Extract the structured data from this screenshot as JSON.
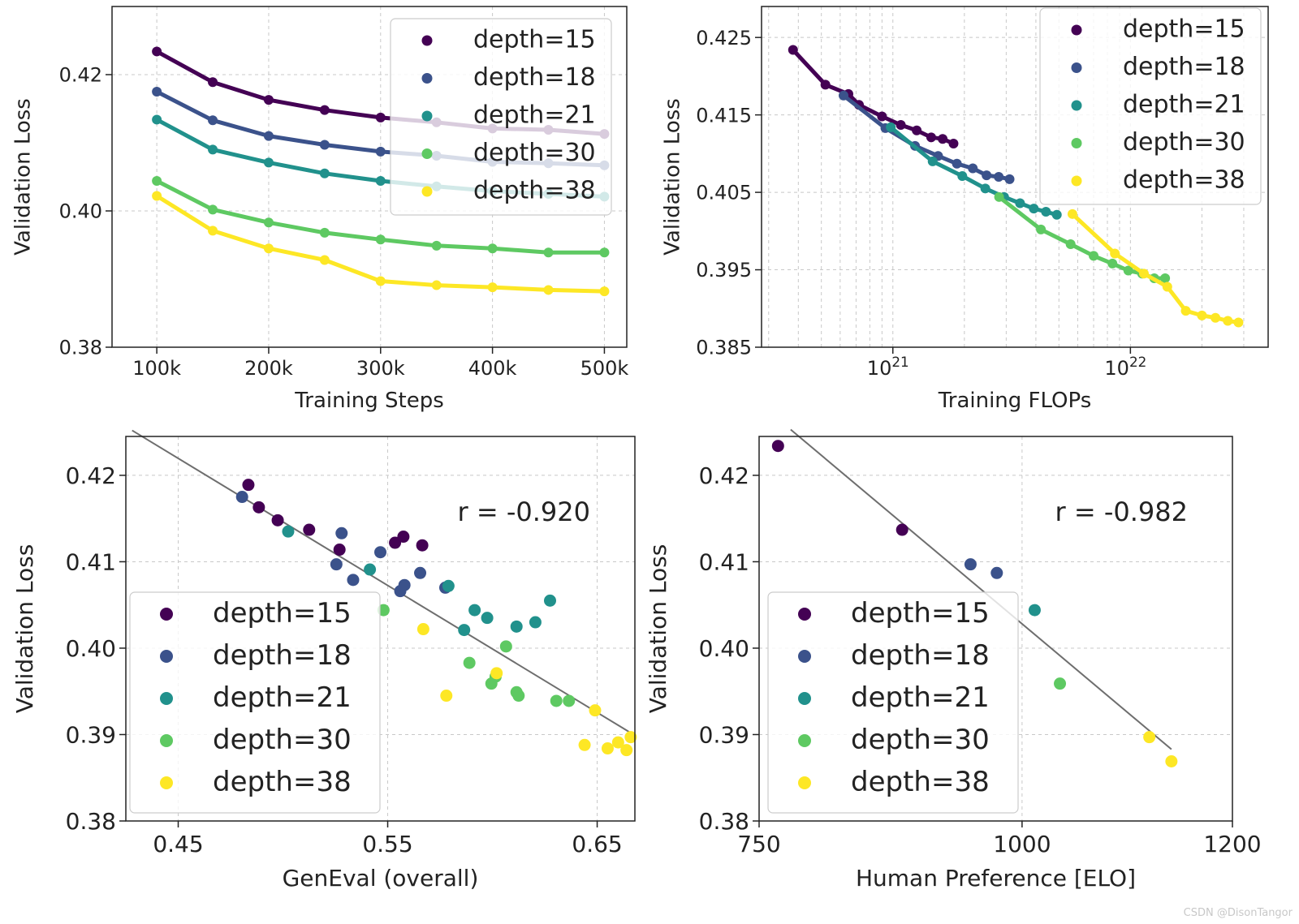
{
  "watermark": "CSDN @DisonTangor",
  "series_colors": {
    "depth=15": "#440154",
    "depth=18": "#3b528b",
    "depth=21": "#21918c",
    "depth=30": "#5ec962",
    "depth=38": "#fde725"
  },
  "chart_data": [
    {
      "id": "steps",
      "type": "line",
      "xlabel": "Training Steps",
      "ylabel": "Validation Loss",
      "xlim": [
        60000,
        520000
      ],
      "ylim": [
        0.38,
        0.43
      ],
      "xticks": [
        100000,
        200000,
        300000,
        400000,
        500000
      ],
      "xtick_labels": [
        "100k",
        "200k",
        "300k",
        "400k",
        "500k"
      ],
      "yticks": [
        0.38,
        0.4,
        0.42
      ],
      "ytick_labels": [
        "0.38",
        "0.40",
        "0.42"
      ],
      "grid": true,
      "legend": "top-right",
      "x": [
        100000,
        150000,
        200000,
        250000,
        300000,
        350000,
        400000,
        450000,
        500000
      ],
      "series": [
        {
          "name": "depth=15",
          "values": [
            0.4234,
            0.4189,
            0.4163,
            0.4148,
            0.4137,
            0.413,
            0.4121,
            0.4119,
            0.4113
          ]
        },
        {
          "name": "depth=18",
          "values": [
            0.4175,
            0.4133,
            0.411,
            0.4097,
            0.4087,
            0.4081,
            0.4072,
            0.407,
            0.4067
          ]
        },
        {
          "name": "depth=21",
          "values": [
            0.4134,
            0.409,
            0.4071,
            0.4055,
            0.4044,
            0.4036,
            0.4029,
            0.4025,
            0.4021
          ]
        },
        {
          "name": "depth=30",
          "values": [
            0.4044,
            0.4002,
            0.3983,
            0.3968,
            0.3958,
            0.3949,
            0.3945,
            0.3939,
            0.3939
          ]
        },
        {
          "name": "depth=38",
          "values": [
            0.4022,
            0.3971,
            0.3945,
            0.3928,
            0.3897,
            0.3891,
            0.3888,
            0.3884,
            0.3882
          ]
        }
      ]
    },
    {
      "id": "flops",
      "type": "line",
      "xlabel": "Training FLOPs",
      "ylabel": "Validation Loss",
      "xscale": "log",
      "xlim": [
        2.8e+20,
        3.8e+22
      ],
      "ylim": [
        0.385,
        0.429
      ],
      "xticks": [
        1e+21,
        1e+22
      ],
      "xtick_labels": [
        "21",
        "22"
      ],
      "xtick_base": "10",
      "yticks": [
        0.385,
        0.395,
        0.405,
        0.415,
        0.425
      ],
      "ytick_labels": [
        "0.385",
        "0.395",
        "0.405",
        "0.415",
        "0.425"
      ],
      "grid": true,
      "legend": "top-right",
      "series": [
        {
          "name": "depth=15",
          "points": [
            [
              3.8e+20,
              0.4234
            ],
            [
              5.2e+20,
              0.4189
            ],
            [
              6.5e+20,
              0.4177
            ],
            [
              7.2e+20,
              0.4163
            ],
            [
              9e+20,
              0.4148
            ],
            [
              1.08e+21,
              0.4137
            ],
            [
              1.26e+21,
              0.413
            ],
            [
              1.45e+21,
              0.4121
            ],
            [
              1.62e+21,
              0.4119
            ],
            [
              1.8e+21,
              0.4113
            ]
          ]
        },
        {
          "name": "depth=18",
          "points": [
            [
              6.2e+20,
              0.4175
            ],
            [
              9.3e+20,
              0.4133
            ],
            [
              1.24e+21,
              0.411
            ],
            [
              1.55e+21,
              0.4097
            ],
            [
              1.86e+21,
              0.4087
            ],
            [
              2.17e+21,
              0.4081
            ],
            [
              2.48e+21,
              0.4072
            ],
            [
              2.79e+21,
              0.407
            ],
            [
              3.1e+21,
              0.4067
            ]
          ]
        },
        {
          "name": "depth=21",
          "points": [
            [
              9.8e+20,
              0.4134
            ],
            [
              1.47e+21,
              0.409
            ],
            [
              1.96e+21,
              0.4071
            ],
            [
              2.45e+21,
              0.4055
            ],
            [
              2.94e+21,
              0.4044
            ],
            [
              3.43e+21,
              0.4036
            ],
            [
              3.92e+21,
              0.4029
            ],
            [
              4.41e+21,
              0.4025
            ],
            [
              4.9e+21,
              0.4021
            ]
          ]
        },
        {
          "name": "depth=30",
          "points": [
            [
              2.8e+21,
              0.4044
            ],
            [
              4.2e+21,
              0.4002
            ],
            [
              5.6e+21,
              0.3983
            ],
            [
              7e+21,
              0.3968
            ],
            [
              8.4e+21,
              0.3958
            ],
            [
              9.8e+21,
              0.3949
            ],
            [
              1.12e+22,
              0.3945
            ],
            [
              1.26e+22,
              0.3939
            ],
            [
              1.4e+22,
              0.3939
            ]
          ]
        },
        {
          "name": "depth=38",
          "points": [
            [
              5.7e+21,
              0.4022
            ],
            [
              8.6e+21,
              0.3971
            ],
            [
              1.14e+22,
              0.3945
            ],
            [
              1.43e+22,
              0.3928
            ],
            [
              1.71e+22,
              0.3897
            ],
            [
              2e+22,
              0.3891
            ],
            [
              2.28e+22,
              0.3888
            ],
            [
              2.57e+22,
              0.3884
            ],
            [
              2.85e+22,
              0.3882
            ]
          ]
        }
      ]
    },
    {
      "id": "geneval",
      "type": "scatter",
      "xlabel": "GenEval (overall)",
      "ylabel": "Validation Loss",
      "xlim": [
        0.425,
        0.668
      ],
      "ylim": [
        0.38,
        0.4245
      ],
      "xticks": [
        0.45,
        0.55,
        0.65
      ],
      "xtick_labels": [
        "0.45",
        "0.55",
        "0.65"
      ],
      "yticks": [
        0.38,
        0.39,
        0.4,
        0.41,
        0.42
      ],
      "ytick_labels": [
        "0.38",
        "0.39",
        "0.40",
        "0.41",
        "0.42"
      ],
      "grid": true,
      "legend": "bottom-left",
      "annotation": "r = -0.920",
      "fit_line": [
        [
          0.428,
          0.4252
        ],
        [
          0.666,
          0.3902
        ]
      ],
      "series": [
        {
          "name": "depth=15",
          "points": [
            [
              0.4835,
              0.4189
            ],
            [
              0.4885,
              0.4163
            ],
            [
              0.4975,
              0.4148
            ],
            [
              0.5125,
              0.4137
            ],
            [
              0.527,
              0.4114
            ],
            [
              0.5535,
              0.4122
            ],
            [
              0.5575,
              0.4129
            ],
            [
              0.5665,
              0.4119
            ]
          ]
        },
        {
          "name": "depth=18",
          "points": [
            [
              0.4805,
              0.4175
            ],
            [
              0.5255,
              0.4097
            ],
            [
              0.528,
              0.4133
            ],
            [
              0.5335,
              0.4079
            ],
            [
              0.5465,
              0.4111
            ],
            [
              0.556,
              0.4066
            ],
            [
              0.558,
              0.4073
            ],
            [
              0.5655,
              0.4087
            ],
            [
              0.5775,
              0.407
            ]
          ]
        },
        {
          "name": "depth=21",
          "points": [
            [
              0.5025,
              0.4135
            ],
            [
              0.5415,
              0.4091
            ],
            [
              0.579,
              0.4072
            ],
            [
              0.5865,
              0.4021
            ],
            [
              0.5915,
              0.4044
            ],
            [
              0.5975,
              0.4035
            ],
            [
              0.6115,
              0.4025
            ],
            [
              0.6205,
              0.403
            ],
            [
              0.6275,
              0.4055
            ]
          ]
        },
        {
          "name": "depth=30",
          "points": [
            [
              0.548,
              0.4044
            ],
            [
              0.589,
              0.3983
            ],
            [
              0.5995,
              0.3959
            ],
            [
              0.6015,
              0.3967
            ],
            [
              0.6065,
              0.4002
            ],
            [
              0.6115,
              0.3949
            ],
            [
              0.6125,
              0.3945
            ],
            [
              0.6305,
              0.3939
            ],
            [
              0.6365,
              0.3939
            ]
          ]
        },
        {
          "name": "depth=38",
          "points": [
            [
              0.567,
              0.4022
            ],
            [
              0.578,
              0.3945
            ],
            [
              0.602,
              0.3971
            ],
            [
              0.644,
              0.3888
            ],
            [
              0.649,
              0.3928
            ],
            [
              0.655,
              0.3884
            ],
            [
              0.66,
              0.3891
            ],
            [
              0.664,
              0.3882
            ],
            [
              0.666,
              0.3897
            ]
          ]
        }
      ]
    },
    {
      "id": "elo",
      "type": "scatter",
      "xlabel": "Human Preference [ELO]",
      "ylabel": "Validation Loss",
      "xlim": [
        750,
        1200
      ],
      "ylim": [
        0.38,
        0.4245
      ],
      "xticks": [
        750,
        1000,
        1200
      ],
      "xtick_labels": [
        "750",
        "1000",
        "1200"
      ],
      "yticks": [
        0.38,
        0.39,
        0.4,
        0.41,
        0.42
      ],
      "ytick_labels": [
        "0.38",
        "0.39",
        "0.40",
        "0.41",
        "0.42"
      ],
      "grid": true,
      "legend": "bottom-left",
      "annotation": "r = -0.982",
      "fit_line": [
        [
          780,
          0.4253
        ],
        [
          1142,
          0.3883
        ]
      ],
      "series": [
        {
          "name": "depth=15",
          "points": [
            [
              768,
              0.4234
            ],
            [
              886,
              0.4137
            ]
          ]
        },
        {
          "name": "depth=18",
          "points": [
            [
              951,
              0.4097
            ],
            [
              976,
              0.4087
            ]
          ]
        },
        {
          "name": "depth=21",
          "points": [
            [
              1012,
              0.4044
            ]
          ]
        },
        {
          "name": "depth=30",
          "points": [
            [
              1036,
              0.3959
            ]
          ]
        },
        {
          "name": "depth=38",
          "points": [
            [
              1121,
              0.3897
            ],
            [
              1142,
              0.3869
            ]
          ]
        }
      ]
    }
  ]
}
